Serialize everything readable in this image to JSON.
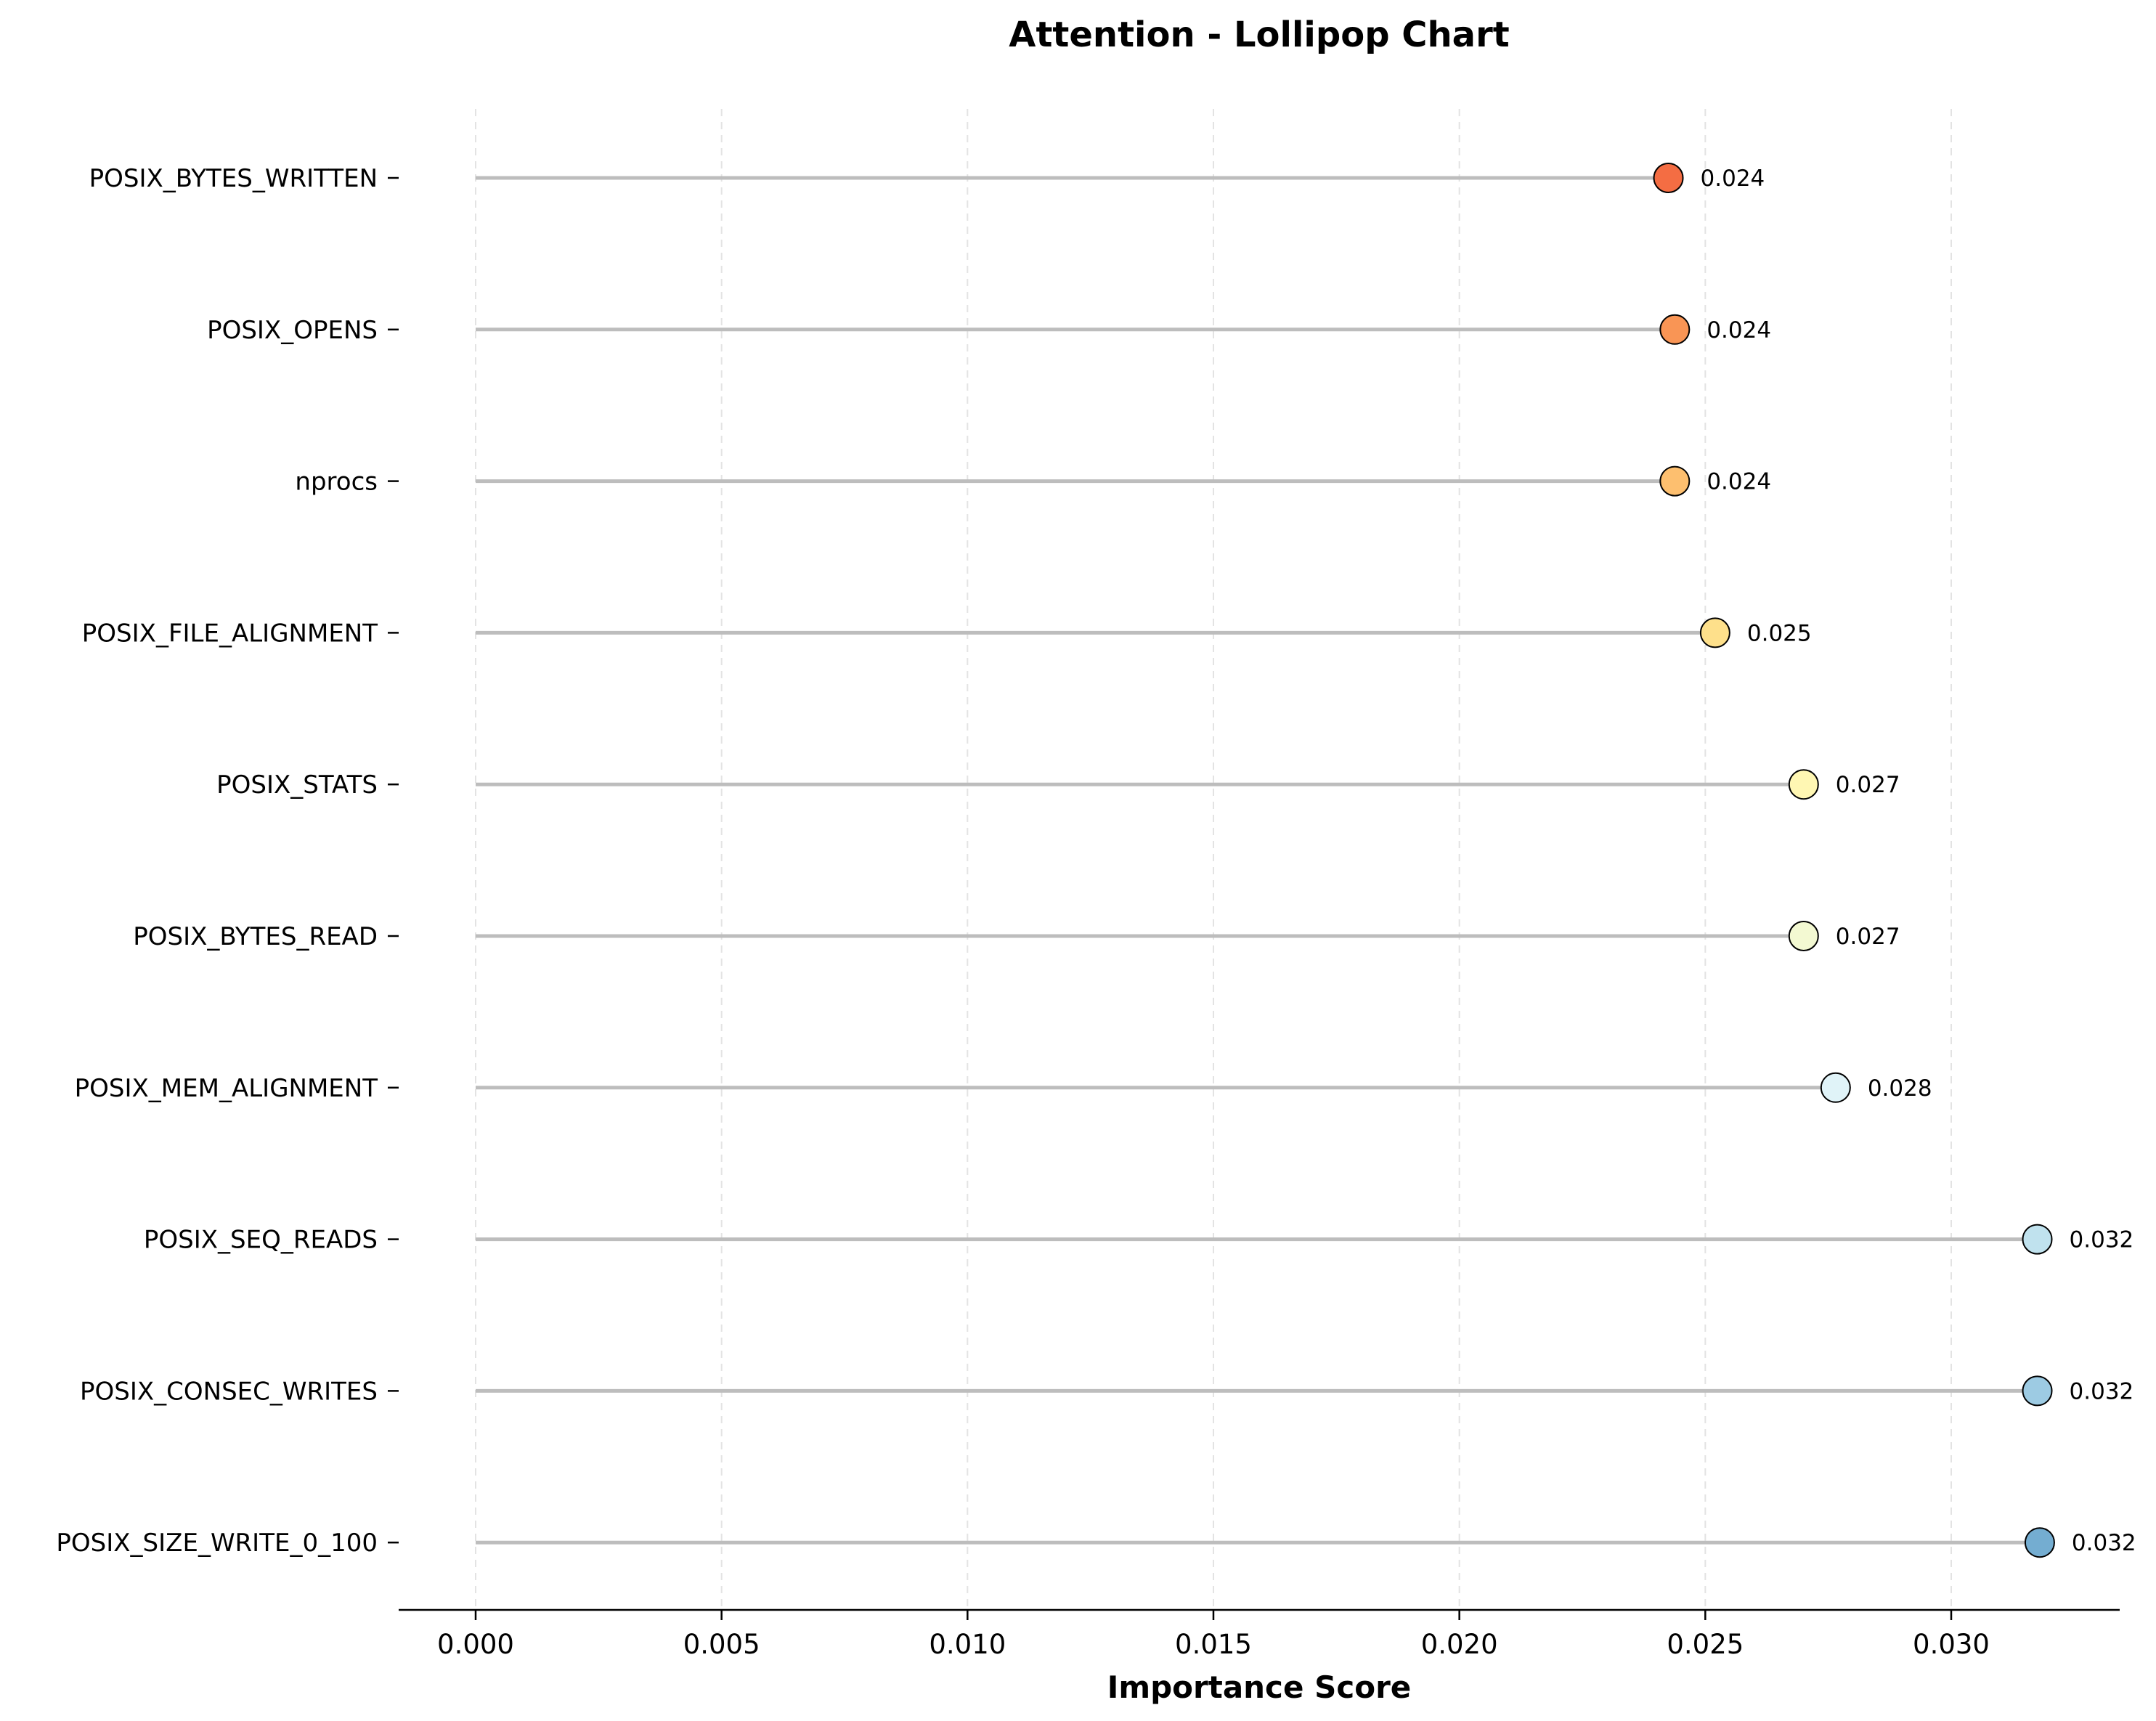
{
  "chart_data": {
    "type": "lollipop",
    "title": "Attention - Lollipop Chart",
    "xlabel": "Importance Score",
    "ylabel": "",
    "xlim": [
      -0.0016,
      0.0335
    ],
    "xticks": [
      "0.000",
      "0.005",
      "0.010",
      "0.015",
      "0.020",
      "0.025",
      "0.030"
    ],
    "xtick_values": [
      0.0,
      0.005,
      0.01,
      0.015,
      0.02,
      0.025,
      0.03
    ],
    "grid": "x-dashed",
    "legend": "none",
    "points": [
      {
        "label": "POSIX_BYTES_WRITTEN",
        "value": 0.02425,
        "text": "0.024",
        "color": "#f46d43"
      },
      {
        "label": "POSIX_OPENS",
        "value": 0.02438,
        "text": "0.024",
        "color": "#f99555"
      },
      {
        "label": "nprocs",
        "value": 0.02438,
        "text": "0.024",
        "color": "#fdbf6f"
      },
      {
        "label": "POSIX_FILE_ALIGNMENT",
        "value": 0.0252,
        "text": "0.025",
        "color": "#fee08b"
      },
      {
        "label": "POSIX_STATS",
        "value": 0.027,
        "text": "0.027",
        "color": "#fff7b3"
      },
      {
        "label": "POSIX_BYTES_READ",
        "value": 0.027,
        "text": "0.027",
        "color": "#f3f9d2"
      },
      {
        "label": "POSIX_MEM_ALIGNMENT",
        "value": 0.02765,
        "text": "0.028",
        "color": "#e0f3f8"
      },
      {
        "label": "POSIX_SEQ_READS",
        "value": 0.03175,
        "text": "0.032",
        "color": "#c0e2ee"
      },
      {
        "label": "POSIX_CONSEC_WRITES",
        "value": 0.03175,
        "text": "0.032",
        "color": "#9dcbe3"
      },
      {
        "label": "POSIX_SIZE_WRITE_0_100",
        "value": 0.0318,
        "text": "0.032",
        "color": "#74add1"
      }
    ],
    "stem_color": "#bdbdbd"
  }
}
